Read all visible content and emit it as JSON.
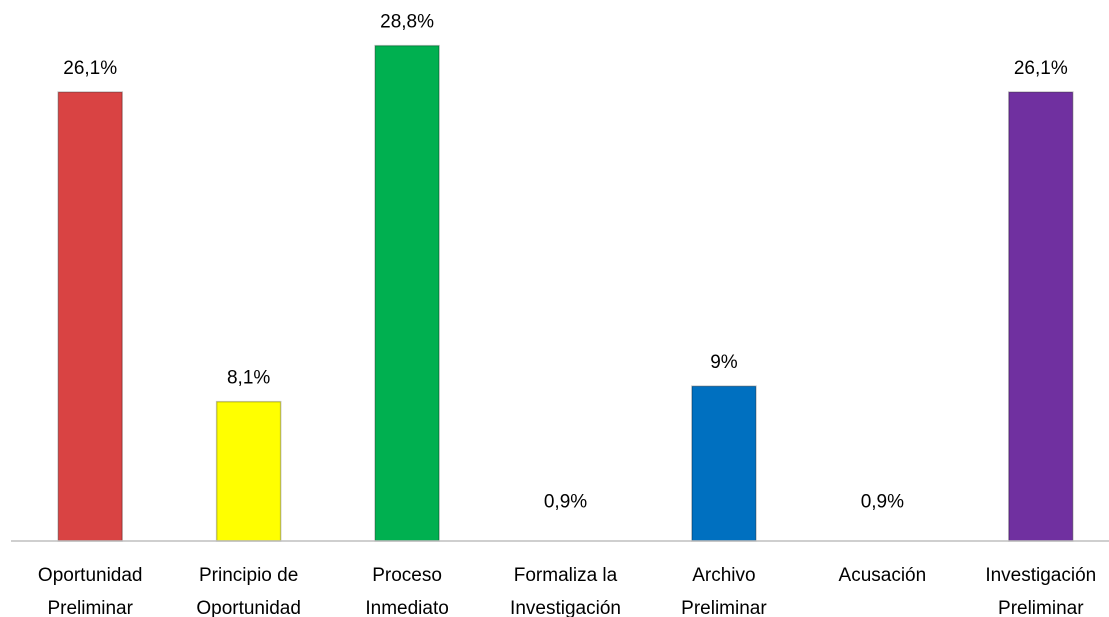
{
  "chart_data": {
    "type": "bar",
    "categories": [
      "Oportunidad\nPreliminar",
      "Principio de\nOportunidad",
      "Proceso\nInmediato",
      "Formaliza la\nInvestigación",
      "Archivo\nPreliminar",
      "Acusación",
      "Investigación\nPreliminar"
    ],
    "values": [
      26.1,
      8.1,
      28.8,
      0.9,
      9,
      0.9,
      26.1
    ],
    "value_labels": [
      "26,1%",
      "8,1%",
      "28,8%",
      "0,9%",
      "9%",
      "0,9%",
      "26,1%"
    ],
    "colors": [
      "#d94343",
      "#ffff00",
      "#00b050",
      "#ffffff",
      "#0070c0",
      "#ffffff",
      "#7030a0"
    ]
  }
}
